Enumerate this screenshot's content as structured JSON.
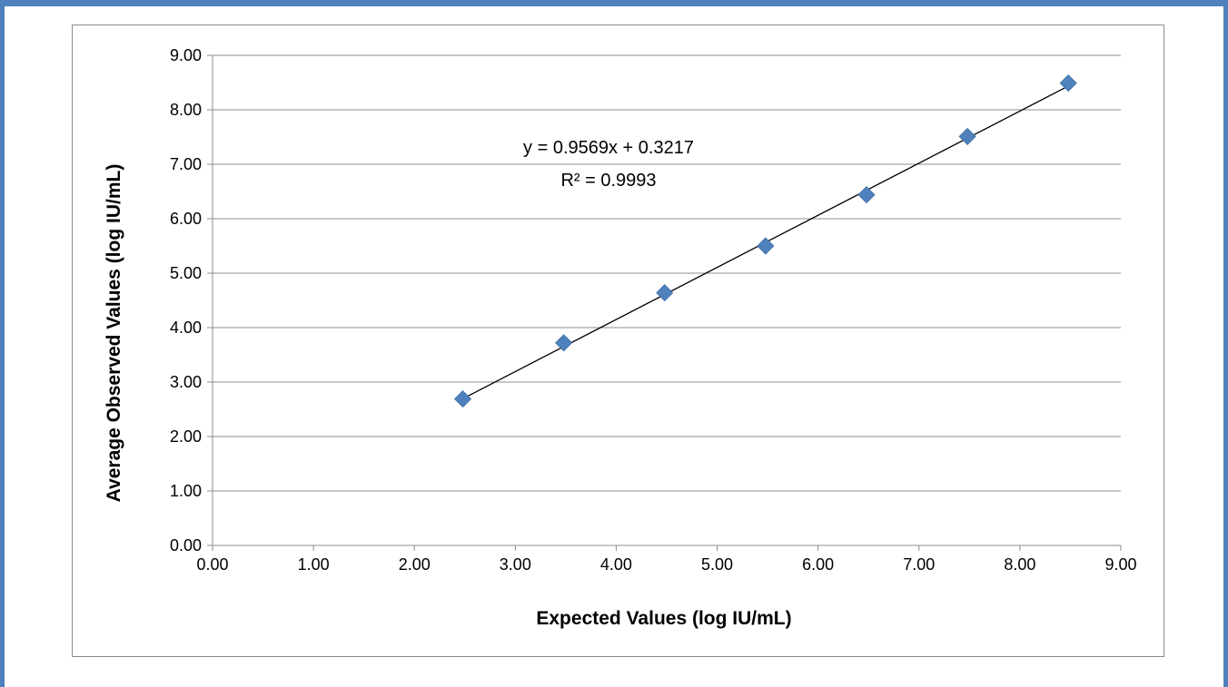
{
  "chart_data": {
    "type": "scatter",
    "xlabel": "Expected Values  (log IU/mL)",
    "ylabel": "Average Observed  Values  (log IU/mL)",
    "xlim": [
      0,
      9
    ],
    "ylim": [
      0,
      9
    ],
    "x_ticks": [
      "0.00",
      "1.00",
      "2.00",
      "3.00",
      "4.00",
      "5.00",
      "6.00",
      "7.00",
      "8.00",
      "9.00"
    ],
    "y_ticks": [
      "0.00",
      "1.00",
      "2.00",
      "3.00",
      "4.00",
      "5.00",
      "6.00",
      "7.00",
      "8.00",
      "9.00"
    ],
    "grid": "horizontal",
    "series": [
      {
        "x": [
          2.48,
          3.48,
          4.48,
          5.48,
          6.48,
          7.48,
          8.48
        ],
        "y": [
          2.69,
          3.72,
          4.64,
          5.5,
          6.44,
          7.51,
          8.49
        ],
        "marker": "diamond",
        "color": "#4f81bd"
      }
    ],
    "trendline": {
      "slope": 0.9569,
      "intercept": 0.3217,
      "x_range": [
        2.48,
        8.48
      ],
      "color": "#000000"
    },
    "annotations": [
      "y = 0.9569x + 0.3217",
      "R² = 0.9993"
    ]
  },
  "colors": {
    "frame": "#4f81bd",
    "gridline": "#8c8c8c",
    "marker": "#4f81bd"
  }
}
